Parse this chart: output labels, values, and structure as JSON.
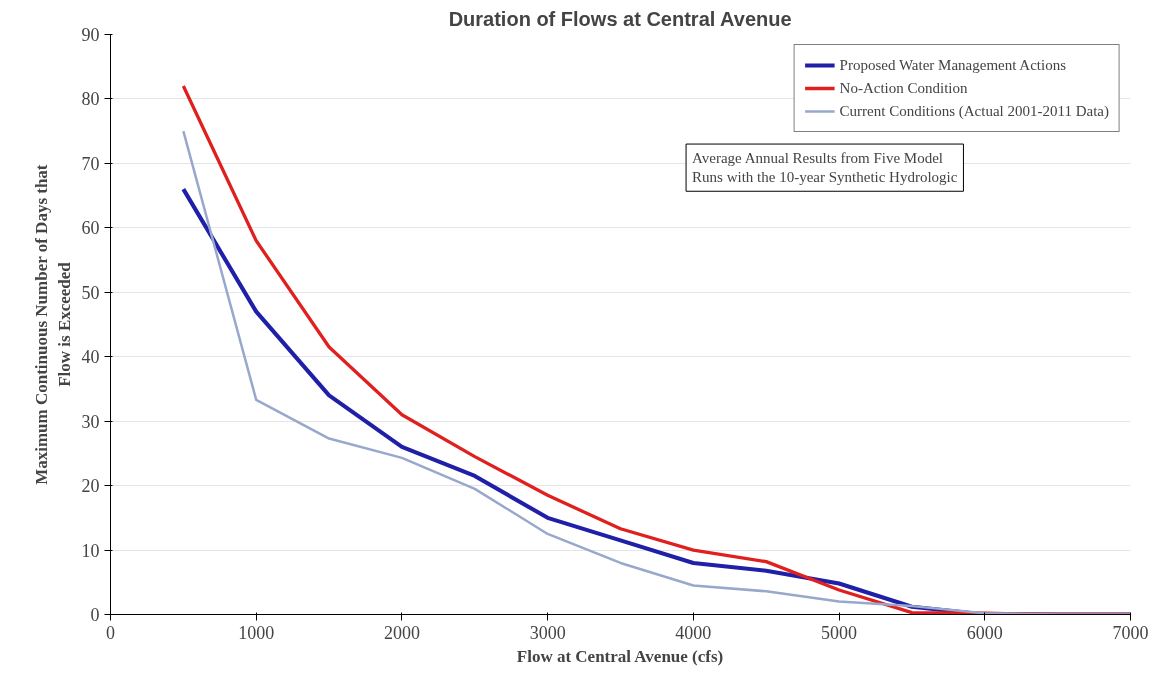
{
  "chart_data": {
    "type": "line",
    "title": "Duration of Flows at Central Avenue",
    "xlabel": "Flow at Central Avenue (cfs)",
    "ylabel": "Maximum Continuous Number of Days that Flow is Exceeded",
    "x": [
      500,
      1000,
      1500,
      2000,
      2500,
      3000,
      3500,
      4000,
      4500,
      5000,
      5500,
      6000,
      6500,
      7000
    ],
    "series": [
      {
        "name": "Proposed Water Management Actions",
        "color": "#1f1fa8",
        "values": [
          66,
          47,
          34,
          26,
          21.5,
          15,
          11.5,
          8,
          6.8,
          4.8,
          1.2,
          0,
          0,
          0
        ]
      },
      {
        "name": "No-Action Condition",
        "color": "#e0201e",
        "values": [
          82,
          58,
          41.5,
          31,
          24.5,
          18.5,
          13.3,
          10,
          8.2,
          3.8,
          0.3,
          0.2,
          0,
          0
        ]
      },
      {
        "name": "Current Conditions (Actual 2001-2011 Data)",
        "color": "#98a8cc",
        "values": [
          75,
          33.3,
          27.3,
          24.3,
          19.5,
          12.5,
          8,
          4.5,
          3.6,
          2,
          1.3,
          0.2,
          0,
          0
        ]
      }
    ],
    "xlim": [
      0,
      7000
    ],
    "xticks": [
      0,
      1000,
      2000,
      3000,
      4000,
      5000,
      6000,
      7000
    ],
    "ylim": [
      0,
      90
    ],
    "yticks": [
      0,
      10,
      20,
      30,
      40,
      50,
      60,
      70,
      80,
      90
    ],
    "grid": "y",
    "legend": "top right",
    "marker": "none",
    "line_style": "solid",
    "annotations": [
      "Average Annual Results from Five Model Runs with the 10-year Synthetic Hydrologic"
    ]
  }
}
